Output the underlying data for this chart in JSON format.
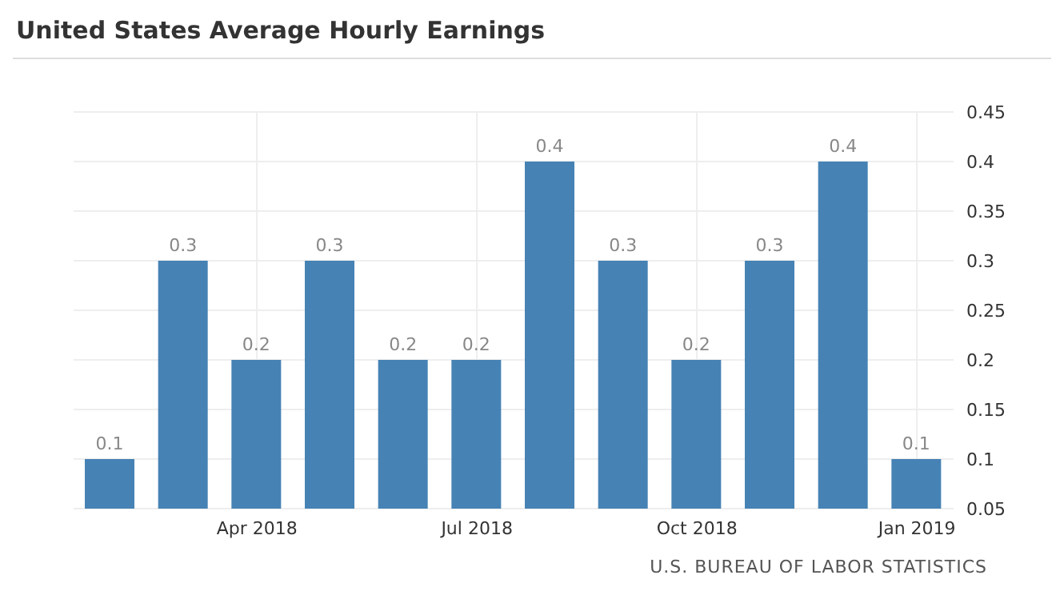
{
  "chart_data": {
    "type": "bar",
    "title": "United States Average Hourly Earnings",
    "categories": [
      null,
      null,
      "Apr 2018",
      null,
      null,
      "Jul 2018",
      null,
      null,
      "Oct 2018",
      null,
      null,
      "Jan 2019"
    ],
    "values": [
      0.1,
      0.3,
      0.2,
      0.3,
      0.2,
      0.2,
      0.4,
      0.3,
      0.2,
      0.3,
      0.4,
      0.1
    ],
    "color": "#4682b4",
    "data_labels": true,
    "ylim": [
      0.05,
      0.45
    ],
    "yticks": [
      0.05,
      0.1,
      0.15,
      0.2,
      0.25,
      0.3,
      0.35,
      0.4,
      0.45
    ],
    "grid": true,
    "annotations": [
      "U.S. BUREAU OF LABOR STATISTICS"
    ]
  }
}
